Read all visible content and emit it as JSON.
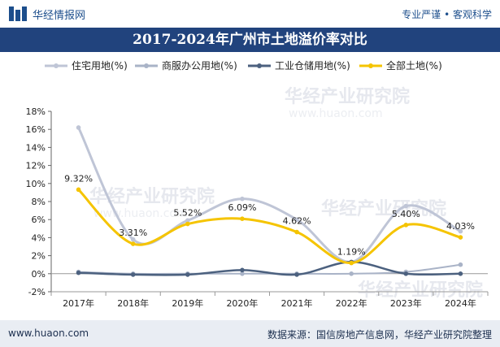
{
  "header": {
    "site_name": "华经情报网",
    "slogan": "专业严谨 • 客观科学"
  },
  "footer": {
    "url": "www.huaon.com",
    "source": "数据来源：国信房地产信息网，华经产业研究院整理"
  },
  "watermark": {
    "text": "华经产业研究院",
    "url": "www.huaon.com"
  },
  "chart_data": {
    "type": "line",
    "title": "2017-2024年广州市土地溢价率对比",
    "categories": [
      "2017年",
      "2018年",
      "2019年",
      "2020年",
      "2021年",
      "2022年",
      "2023年",
      "2024年"
    ],
    "ylim": [
      -2,
      18
    ],
    "yticks": [
      -2,
      0,
      2,
      4,
      6,
      8,
      10,
      12,
      14,
      16,
      18
    ],
    "ytick_labels": [
      "-2%",
      "0%",
      "2%",
      "4%",
      "6%",
      "8%",
      "10%",
      "12%",
      "14%",
      "16%",
      "18%"
    ],
    "legend_position": "top",
    "grid": false,
    "series": [
      {
        "name": "住宅用地(%)",
        "color": "#bfc5d6",
        "width": 3,
        "values": [
          16.2,
          3.8,
          5.9,
          8.3,
          6.0,
          1.3,
          7.5,
          4.7
        ],
        "labels": null
      },
      {
        "name": "商服办公用地(%)",
        "color": "#a9b3c7",
        "width": 2,
        "values": [
          0.2,
          0.0,
          0.0,
          0.0,
          0.0,
          0.0,
          0.2,
          1.0
        ],
        "labels": null
      },
      {
        "name": "工业仓储用地(%)",
        "color": "#4c617f",
        "width": 2.5,
        "values": [
          0.1,
          -0.1,
          -0.1,
          0.4,
          -0.1,
          1.3,
          0.0,
          0.0
        ],
        "labels": null
      },
      {
        "name": "全部土地(%)",
        "color": "#f5c400",
        "width": 3,
        "values": [
          9.32,
          3.31,
          5.52,
          6.09,
          4.62,
          1.19,
          5.4,
          4.03
        ],
        "labels": [
          "9.32%",
          "3.31%",
          "5.52%",
          "6.09%",
          "4.62%",
          "1.19%",
          "5.40%",
          "4.03%"
        ]
      }
    ]
  }
}
